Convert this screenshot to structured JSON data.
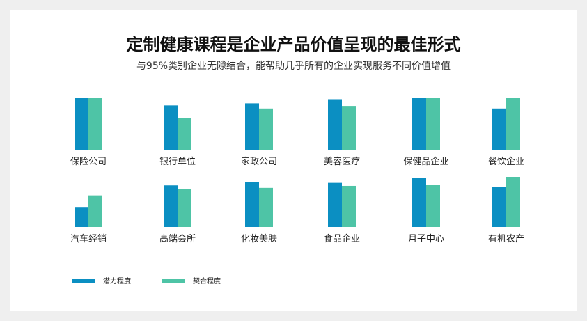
{
  "title": "定制健康课程是企业产品价值呈现的最佳形式",
  "subtitle": "与95%类别企业无隙结合，能帮助几乎所有的企业实现服务不同价值增值",
  "colors": {
    "series1": "#0b8fc2",
    "series2": "#4ec4a6",
    "background": "#efefef",
    "panel": "#ffffff"
  },
  "chart_data": {
    "type": "bar",
    "legend_position": "bottom-left",
    "grid": false,
    "value_range": [
      0,
      100
    ],
    "series": [
      {
        "name": "潜力程度"
      },
      {
        "name": "契合程度"
      }
    ],
    "rows": [
      {
        "categories": [
          "保险公司",
          "银行单位",
          "家政公司",
          "美容医疗",
          "保健品企业",
          "餐饮企业"
        ],
        "potential": [
          100,
          86,
          90,
          98,
          100,
          80
        ],
        "fit": [
          100,
          62,
          80,
          85,
          100,
          100
        ]
      },
      {
        "categories": [
          "汽车经销",
          "高端会所",
          "化妆美肤",
          "食品企业",
          "月子中心",
          "有机农产"
        ],
        "potential": [
          40,
          83,
          90,
          88,
          98,
          80
        ],
        "fit": [
          63,
          76,
          78,
          82,
          84,
          100
        ]
      }
    ]
  }
}
